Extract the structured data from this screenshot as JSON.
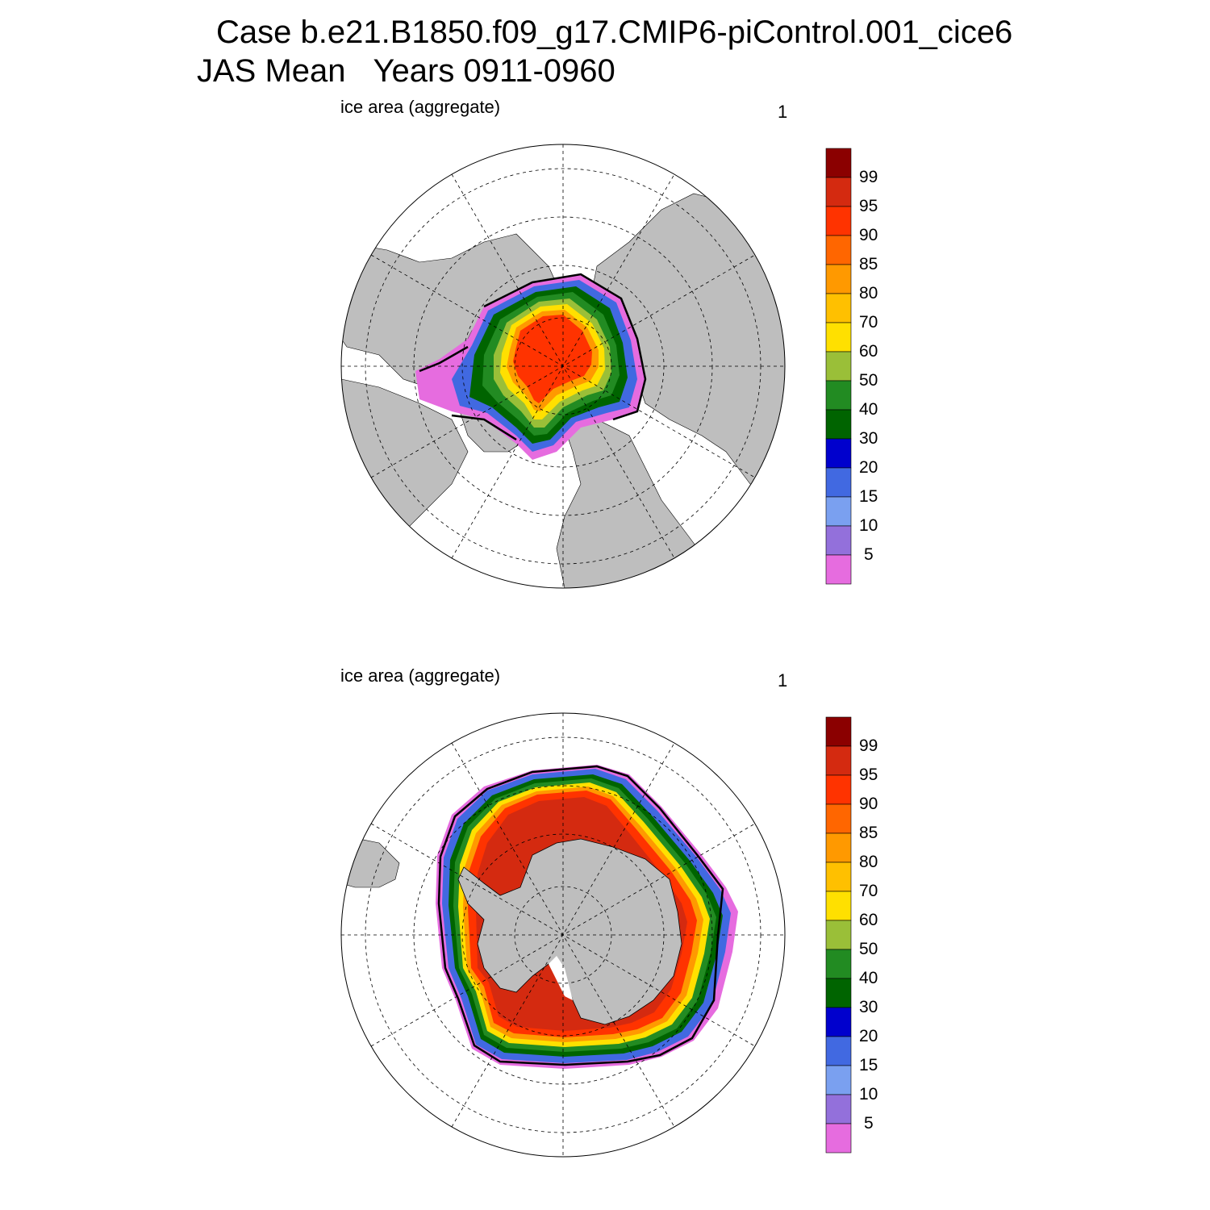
{
  "title": {
    "line1": "Case b.e21.B1850.f09_g17.CMIP6-piControl.001_cice6",
    "line2_left": "JAS Mean",
    "line2_right": "Years 0911-0960"
  },
  "panels": [
    {
      "id": "north",
      "label": "ice area  (aggregate)",
      "number": "1",
      "hemisphere": "Arctic"
    },
    {
      "id": "south",
      "label": "ice area  (aggregate)",
      "number": "1",
      "hemisphere": "Antarctic"
    }
  ],
  "colorbar": {
    "labels": [
      "99",
      "95",
      "90",
      "85",
      "80",
      "70",
      "60",
      "50",
      "40",
      "30",
      "20",
      "15",
      "10",
      "5"
    ],
    "colors": [
      "#8b0000",
      "#d42a10",
      "#ff3300",
      "#ff6600",
      "#ff9900",
      "#ffc000",
      "#ffe000",
      "#9abf38",
      "#228b22",
      "#006400",
      "#0000cd",
      "#4169e1",
      "#7aa0f0",
      "#9370db",
      "#e66cdf"
    ]
  },
  "colors": {
    "land": "#bebebe",
    "ocean": "#ffffff"
  }
}
